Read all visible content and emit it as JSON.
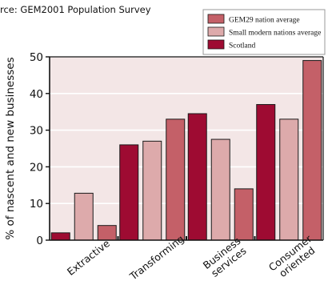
{
  "source_note": "rce: GEM2001 Population Survey",
  "chart_data": {
    "type": "bar",
    "ylabel": "% of nascent and new businesses",
    "ylim": [
      0,
      50
    ],
    "yticks": [
      0,
      10,
      20,
      30,
      40,
      50
    ],
    "grid": true,
    "legend_position": "top-right",
    "categories": [
      [
        "Extractive"
      ],
      [
        "Transforming"
      ],
      [
        "Business",
        "services"
      ],
      [
        "Consumer",
        "oriented"
      ]
    ],
    "series": [
      {
        "name": "Scotland",
        "color": "#9e0b32",
        "values": [
          2,
          26,
          34.5,
          37
        ]
      },
      {
        "name": "Small modern nations average",
        "color": "#ddaaab",
        "values": [
          12.8,
          27,
          27.5,
          33
        ]
      },
      {
        "name": "GEM29 nation average",
        "color": "#c46068",
        "values": [
          4,
          33,
          14,
          49
        ]
      }
    ],
    "legend_order": [
      2,
      1,
      0
    ],
    "colors": {
      "plot_bg": "#f3e6e6",
      "grid": "#ffffff",
      "axis": "#111111",
      "legend_border": "#999999"
    }
  }
}
